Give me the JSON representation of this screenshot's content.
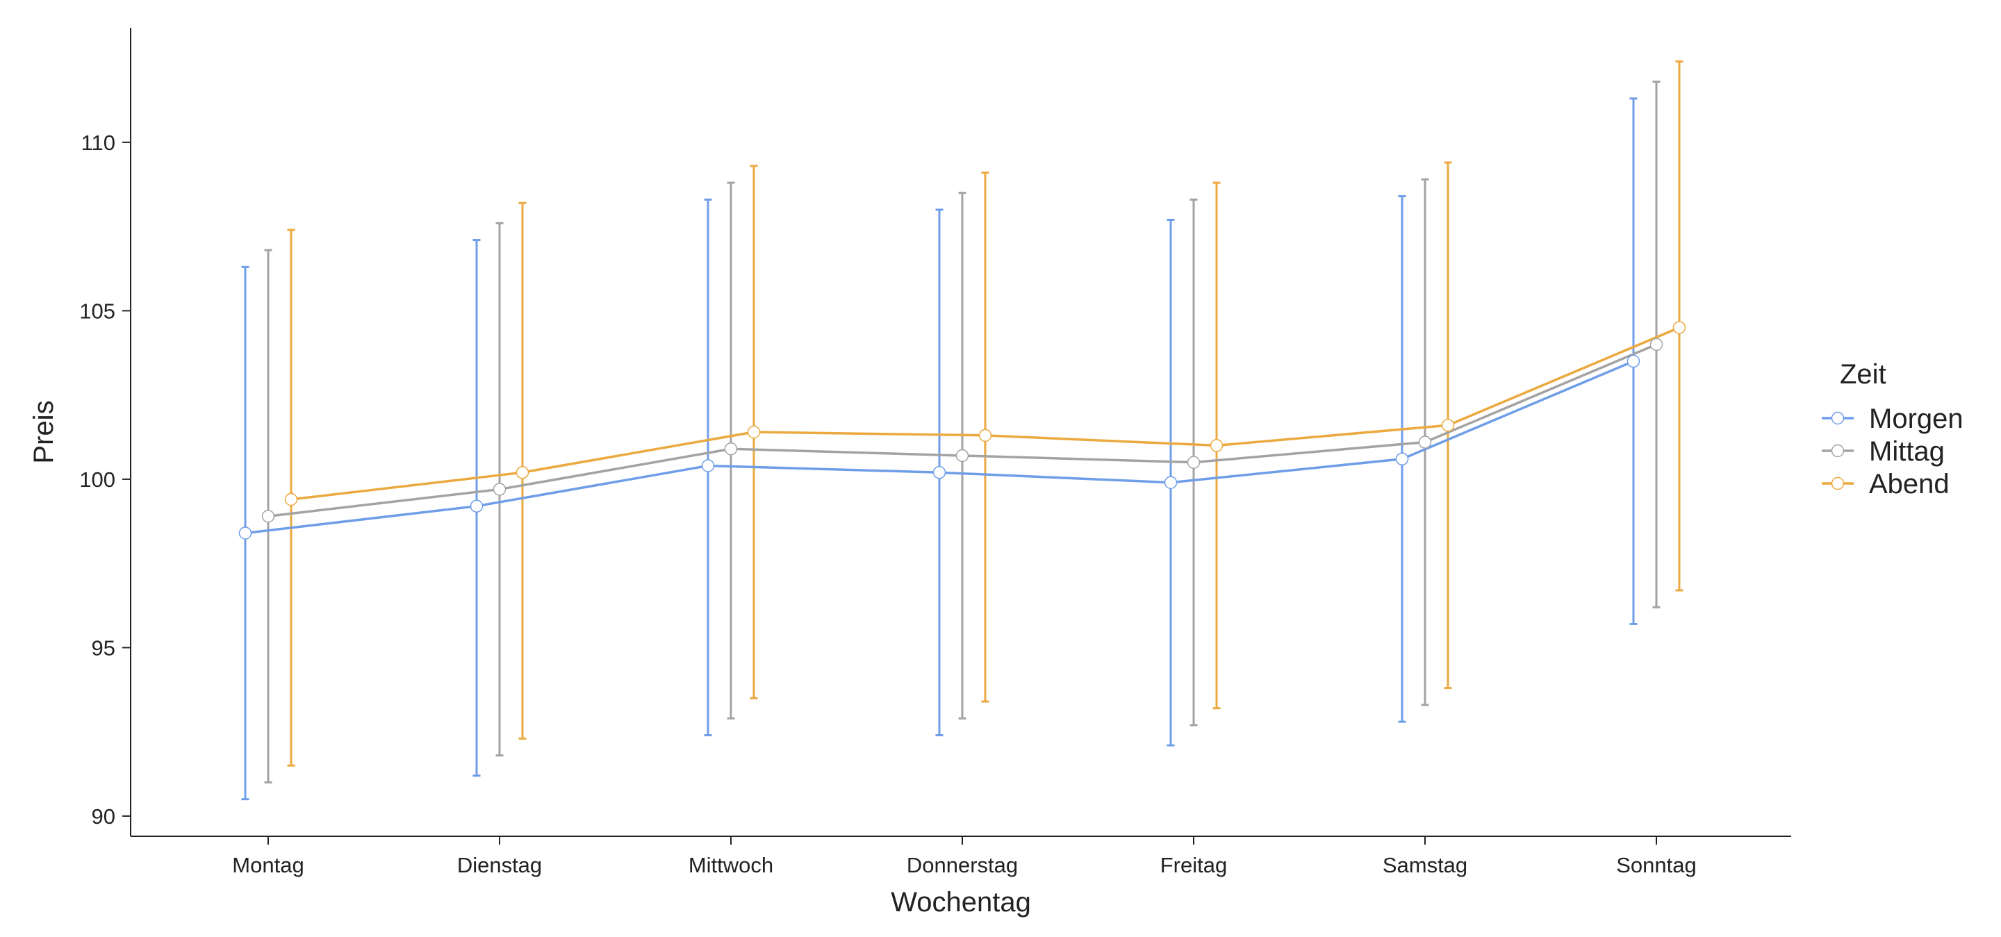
{
  "chart_data": {
    "type": "line",
    "title": "",
    "xlabel": "Wochentag",
    "ylabel": "Preis",
    "categories": [
      "Montag",
      "Dienstag",
      "Mittwoch",
      "Donnerstag",
      "Freitag",
      "Samstag",
      "Sonntag"
    ],
    "ylim": [
      89.4,
      113.4
    ],
    "yticks": [
      90,
      95,
      100,
      105,
      110
    ],
    "grid": false,
    "legend": {
      "title": "Zeit",
      "placement": "right"
    },
    "series": [
      {
        "name": "Morgen",
        "color": "#6f9ee8",
        "values": [
          98.4,
          99.2,
          100.4,
          100.2,
          99.9,
          100.6,
          103.5
        ],
        "lower": [
          90.5,
          91.2,
          92.4,
          92.4,
          92.1,
          92.8,
          95.7
        ],
        "upper": [
          106.3,
          107.1,
          108.3,
          108.0,
          107.7,
          108.4,
          111.3
        ]
      },
      {
        "name": "Mittag",
        "color": "#a3a3a3",
        "values": [
          98.9,
          99.7,
          100.9,
          100.7,
          100.5,
          101.1,
          104.0
        ],
        "lower": [
          91.0,
          91.8,
          92.9,
          92.9,
          92.7,
          93.3,
          96.2
        ],
        "upper": [
          106.8,
          107.6,
          108.8,
          108.5,
          108.3,
          108.9,
          111.8
        ]
      },
      {
        "name": "Abend",
        "color": "#eba93f",
        "values": [
          99.4,
          100.2,
          101.4,
          101.3,
          101.0,
          101.6,
          104.5
        ],
        "lower": [
          91.5,
          92.3,
          93.5,
          93.4,
          93.2,
          93.8,
          96.7
        ],
        "upper": [
          107.4,
          108.2,
          109.3,
          109.1,
          108.8,
          109.4,
          112.4
        ]
      }
    ]
  }
}
